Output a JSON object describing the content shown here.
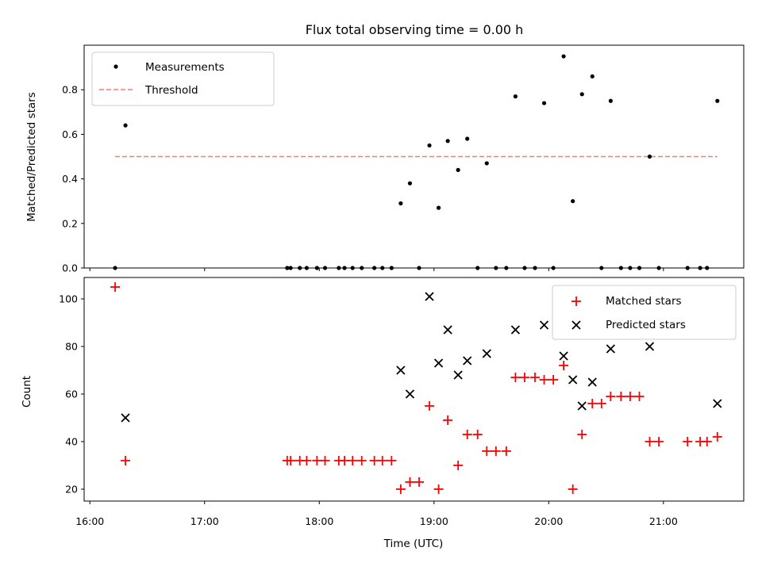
{
  "chart_data": [
    {
      "type": "scatter",
      "title": "Flux total observing time = 0.00 h",
      "xlabel": "",
      "ylabel": "Matched/Predicted stars",
      "xlim": [
        15.95,
        21.7
      ],
      "ylim": [
        0,
        1
      ],
      "yticks": [
        0.0,
        0.2,
        0.4,
        0.6,
        0.8
      ],
      "ytick_labels": [
        "0.0",
        "0.2",
        "0.4",
        "0.6",
        "0.8"
      ],
      "legend": {
        "position": "top-left",
        "entries": [
          "Measurements",
          "Threshold"
        ]
      },
      "threshold": {
        "name": "Threshold",
        "y": 0.5,
        "x_range": [
          16.22,
          21.47
        ],
        "color": "#ff7777"
      },
      "series": [
        {
          "name": "Measurements",
          "color": "#000000",
          "points": [
            [
              16.22,
              0
            ],
            [
              16.31,
              0.64
            ],
            [
              17.72,
              0
            ],
            [
              17.75,
              0
            ],
            [
              17.83,
              0
            ],
            [
              17.89,
              0
            ],
            [
              17.98,
              0
            ],
            [
              18.05,
              0
            ],
            [
              18.17,
              0
            ],
            [
              18.22,
              0
            ],
            [
              18.29,
              0
            ],
            [
              18.37,
              0
            ],
            [
              18.48,
              0
            ],
            [
              18.55,
              0
            ],
            [
              18.63,
              0
            ],
            [
              18.71,
              0.29
            ],
            [
              18.79,
              0.38
            ],
            [
              18.87,
              0
            ],
            [
              18.96,
              0.55
            ],
            [
              19.04,
              0.27
            ],
            [
              19.12,
              0.57
            ],
            [
              19.21,
              0.44
            ],
            [
              19.29,
              0.58
            ],
            [
              19.38,
              0
            ],
            [
              19.46,
              0.47
            ],
            [
              19.54,
              0
            ],
            [
              19.63,
              0
            ],
            [
              19.71,
              0.77
            ],
            [
              19.79,
              0
            ],
            [
              19.88,
              0
            ],
            [
              19.96,
              0.74
            ],
            [
              20.04,
              0
            ],
            [
              20.13,
              0.95
            ],
            [
              20.21,
              0.3
            ],
            [
              20.29,
              0.78
            ],
            [
              20.38,
              0.86
            ],
            [
              20.46,
              0
            ],
            [
              20.54,
              0.75
            ],
            [
              20.63,
              0
            ],
            [
              20.71,
              0
            ],
            [
              20.79,
              0
            ],
            [
              20.88,
              0.5
            ],
            [
              20.96,
              0
            ],
            [
              21.21,
              0
            ],
            [
              21.32,
              0
            ],
            [
              21.38,
              0
            ],
            [
              21.47,
              0.75
            ]
          ]
        }
      ]
    },
    {
      "type": "scatter",
      "title": "",
      "xlabel": "Time (UTC)",
      "ylabel": "Count",
      "xlim": [
        15.95,
        21.7
      ],
      "ylim": [
        15,
        109
      ],
      "xticks": [
        16,
        17,
        18,
        19,
        20,
        21
      ],
      "xtick_labels": [
        "16:00",
        "17:00",
        "18:00",
        "19:00",
        "20:00",
        "21:00"
      ],
      "yticks": [
        20,
        40,
        60,
        80,
        100
      ],
      "ytick_labels": [
        "20",
        "40",
        "60",
        "80",
        "100"
      ],
      "legend": {
        "position": "top-right",
        "entries": [
          "Matched stars",
          "Predicted stars"
        ]
      },
      "series": [
        {
          "name": "Matched stars",
          "marker": "+",
          "color": "#ff0000",
          "points": [
            [
              16.22,
              105
            ],
            [
              16.31,
              32
            ],
            [
              17.72,
              32
            ],
            [
              17.75,
              32
            ],
            [
              17.83,
              32
            ],
            [
              17.89,
              32
            ],
            [
              17.98,
              32
            ],
            [
              18.05,
              32
            ],
            [
              18.17,
              32
            ],
            [
              18.22,
              32
            ],
            [
              18.29,
              32
            ],
            [
              18.37,
              32
            ],
            [
              18.48,
              32
            ],
            [
              18.55,
              32
            ],
            [
              18.63,
              32
            ],
            [
              18.71,
              20
            ],
            [
              18.79,
              23
            ],
            [
              18.87,
              23
            ],
            [
              18.96,
              55
            ],
            [
              19.04,
              20
            ],
            [
              19.12,
              49
            ],
            [
              19.21,
              30
            ],
            [
              19.29,
              43
            ],
            [
              19.38,
              43
            ],
            [
              19.46,
              36
            ],
            [
              19.54,
              36
            ],
            [
              19.63,
              36
            ],
            [
              19.71,
              67
            ],
            [
              19.79,
              67
            ],
            [
              19.88,
              67
            ],
            [
              19.96,
              66
            ],
            [
              20.04,
              66
            ],
            [
              20.13,
              72
            ],
            [
              20.21,
              20
            ],
            [
              20.29,
              43
            ],
            [
              20.38,
              56
            ],
            [
              20.46,
              56
            ],
            [
              20.54,
              59
            ],
            [
              20.63,
              59
            ],
            [
              20.71,
              59
            ],
            [
              20.79,
              59
            ],
            [
              20.88,
              40
            ],
            [
              20.96,
              40
            ],
            [
              21.21,
              40
            ],
            [
              21.32,
              40
            ],
            [
              21.38,
              40
            ],
            [
              21.47,
              42
            ]
          ]
        },
        {
          "name": "Predicted stars",
          "marker": "x",
          "color": "#000000",
          "points": [
            [
              16.31,
              50
            ],
            [
              18.71,
              70
            ],
            [
              18.79,
              60
            ],
            [
              18.96,
              101
            ],
            [
              19.04,
              73
            ],
            [
              19.12,
              87
            ],
            [
              19.21,
              68
            ],
            [
              19.29,
              74
            ],
            [
              19.46,
              77
            ],
            [
              19.71,
              87
            ],
            [
              19.96,
              89
            ],
            [
              20.13,
              76
            ],
            [
              20.21,
              66
            ],
            [
              20.29,
              55
            ],
            [
              20.38,
              65
            ],
            [
              20.54,
              79
            ],
            [
              20.88,
              80
            ],
            [
              21.47,
              56
            ]
          ]
        }
      ]
    }
  ]
}
